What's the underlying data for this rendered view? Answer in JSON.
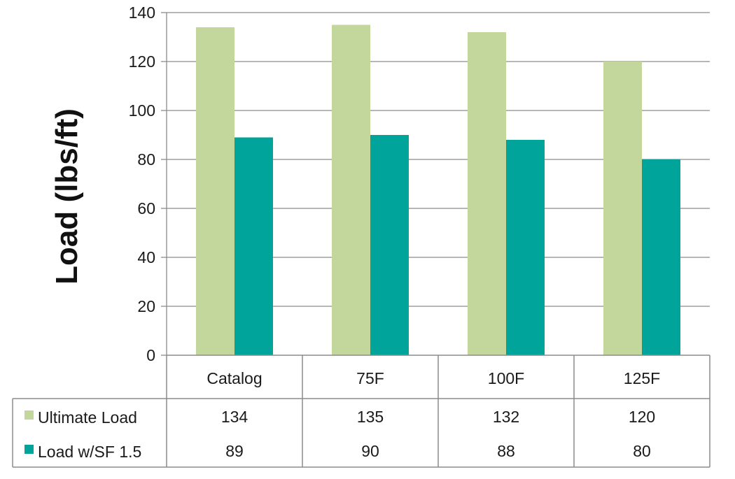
{
  "chart_data": {
    "type": "bar",
    "title": "",
    "xlabel": "",
    "ylabel": "Load (lbs/ft)",
    "ylim": [
      0,
      140
    ],
    "yticks": [
      0,
      20,
      40,
      60,
      80,
      100,
      120,
      140
    ],
    "grid": true,
    "legend_placement": "data-table-left",
    "categories": [
      "Catalog",
      "75F",
      "100F",
      "125F"
    ],
    "series": [
      {
        "name": "Ultimate Load",
        "color": "#c3d69b",
        "values": [
          134,
          135,
          132,
          120
        ]
      },
      {
        "name": "Load w/SF 1.5",
        "color": "#00a49a",
        "values": [
          89,
          90,
          88,
          80
        ]
      }
    ]
  }
}
